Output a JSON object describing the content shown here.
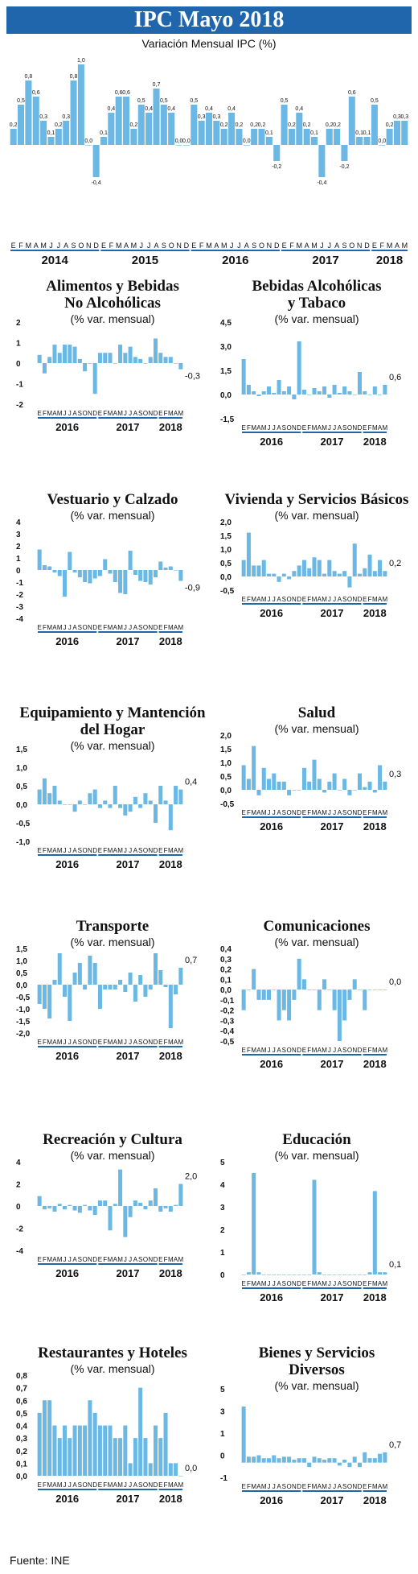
{
  "page": {
    "title": "IPC  Mayo 2018",
    "subtitle": "Variación Mensual IPC (%)",
    "source": "Fuente: INE"
  },
  "chart_data": [
    {
      "id": "main",
      "type": "bar",
      "title": "IPC  Mayo 2018",
      "subtitle": "Variación Mensual IPC (%)",
      "color": "#6bb8e4",
      "show_value_labels": true,
      "ylim": [
        -0.55,
        1.1
      ],
      "month_letters": [
        "E",
        "F",
        "M",
        "A",
        "M",
        "J",
        "J",
        "A",
        "S",
        "O",
        "N",
        "D"
      ],
      "year_labels": [
        "2014",
        "2015",
        "2016",
        "2017",
        "2018"
      ],
      "values": [
        0.2,
        0.5,
        0.8,
        0.6,
        0.3,
        0.1,
        0.2,
        0.3,
        0.8,
        1.0,
        0.0,
        -0.4,
        0.1,
        0.4,
        0.6,
        0.6,
        0.2,
        0.5,
        0.4,
        0.7,
        0.5,
        0.4,
        0.0,
        0.0,
        0.5,
        0.3,
        0.4,
        0.3,
        0.2,
        0.4,
        0.2,
        0.0,
        0.2,
        0.2,
        0.1,
        -0.2,
        0.5,
        0.2,
        0.4,
        0.2,
        0.1,
        -0.4,
        0.2,
        0.2,
        -0.2,
        0.6,
        0.1,
        0.1,
        0.5,
        0.0,
        0.2,
        0.3,
        0.3
      ]
    },
    {
      "id": "alimentos",
      "type": "bar",
      "title": "Alimentos y Bebidas\nNo  Alcohólicas",
      "subtitle": "(% var. mensual)",
      "color": "#6bb8e4",
      "ylim": [
        -2,
        2
      ],
      "yticks": [
        "2",
        "1",
        "0",
        "-1",
        "-2"
      ],
      "year_labels": [
        "2016",
        "2017",
        "2018"
      ],
      "month_letters": [
        "E",
        "F",
        "M",
        "A",
        "M",
        "J",
        "J",
        "A",
        "S",
        "O",
        "N",
        "D"
      ],
      "annotation": "-0,3",
      "values": [
        0.4,
        -0.5,
        0.3,
        0.9,
        0.5,
        0.9,
        0.9,
        0.8,
        0.2,
        -0.4,
        0.0,
        -1.5,
        0.5,
        0.5,
        0.5,
        0.0,
        0.9,
        0.5,
        0.8,
        0.3,
        0.2,
        0.0,
        0.3,
        1.2,
        0.5,
        0.3,
        0.3,
        0.0,
        -0.3
      ]
    },
    {
      "id": "bebidas",
      "type": "bar",
      "title": "Bebidas Alcohólicas\ny Tabaco",
      "subtitle": "(% var. mensual)",
      "color": "#6bb8e4",
      "ylim": [
        -1.5,
        4.5
      ],
      "yticks": [
        "4,5",
        "3,0",
        "1,5",
        "0,0",
        "-1,5"
      ],
      "year_labels": [
        "2016",
        "2017",
        "2018"
      ],
      "month_letters": [
        "E",
        "F",
        "M",
        "A",
        "M",
        "J",
        "J",
        "A",
        "S",
        "O",
        "N",
        "D"
      ],
      "annotation": "0,6",
      "values": [
        2.2,
        0.6,
        0.2,
        -0.1,
        0.2,
        0.5,
        0.1,
        0.9,
        0.2,
        0.5,
        -0.3,
        3.3,
        0.3,
        0.0,
        0.4,
        0.2,
        0.5,
        -0.2,
        0.6,
        0.1,
        0.5,
        0.2,
        0.0,
        1.4,
        0.2,
        0.0,
        0.5,
        0.0,
        0.6
      ]
    },
    {
      "id": "vestuario",
      "type": "bar",
      "title": "Vestuario y Calzado",
      "subtitle": "(% var. mensual)",
      "color": "#6bb8e4",
      "ylim": [
        -4,
        4
      ],
      "yticks": [
        "4",
        "3",
        "2",
        "1",
        "0",
        "-1",
        "-2",
        "-3",
        "-4"
      ],
      "year_labels": [
        "2016",
        "2017",
        "2018"
      ],
      "month_letters": [
        "E",
        "F",
        "M",
        "A",
        "M",
        "J",
        "J",
        "A",
        "S",
        "O",
        "N",
        "D"
      ],
      "annotation": "-0,9",
      "values": [
        1.7,
        0.4,
        0.3,
        -0.2,
        -0.5,
        -2.2,
        1.5,
        -0.2,
        -0.6,
        -1.0,
        -1.1,
        -0.7,
        -0.5,
        0.9,
        -0.3,
        -1.0,
        -1.9,
        -2.0,
        1.6,
        -0.4,
        -0.9,
        -1.0,
        -1.2,
        -0.6,
        0.7,
        0.2,
        0.3,
        0.0,
        -0.9
      ]
    },
    {
      "id": "vivienda",
      "type": "bar",
      "title": "Vivienda y Servicios Básicos",
      "subtitle": "(% var. mensual)",
      "color": "#6bb8e4",
      "ylim": [
        -0.5,
        2.0
      ],
      "yticks": [
        "2,0",
        "1,5",
        "1,0",
        "0,5",
        "0,0",
        "-0,5"
      ],
      "year_labels": [
        "2016",
        "2017",
        "2018"
      ],
      "month_letters": [
        "E",
        "F",
        "M",
        "A",
        "M",
        "J",
        "J",
        "A",
        "S",
        "O",
        "N",
        "D"
      ],
      "annotation": "0,2",
      "values": [
        0.6,
        1.6,
        0.4,
        0.4,
        0.6,
        0.1,
        0.1,
        -0.2,
        0.1,
        -0.1,
        0.2,
        0.4,
        0.6,
        0.3,
        0.7,
        0.6,
        0.1,
        0.6,
        0.2,
        0.1,
        0.2,
        -0.4,
        1.2,
        0.1,
        0.3,
        0.8,
        0.2,
        0.6,
        0.2
      ]
    },
    {
      "id": "equipamiento",
      "type": "bar",
      "title": "Equipamiento y Mantención\ndel Hogar",
      "subtitle": "(% var. mensual)",
      "color": "#6bb8e4",
      "ylim": [
        -1.0,
        1.5
      ],
      "yticks": [
        "1,5",
        "1,0",
        "0,5",
        "0,0",
        "-0,5",
        "-1,0"
      ],
      "year_labels": [
        "2016",
        "2017",
        "2018"
      ],
      "month_letters": [
        "E",
        "F",
        "M",
        "A",
        "M",
        "J",
        "J",
        "A",
        "S",
        "O",
        "N",
        "D"
      ],
      "annotation": "0,4",
      "values": [
        0.4,
        0.7,
        0.3,
        0.5,
        0.1,
        0.0,
        0.0,
        -0.2,
        0.1,
        0.0,
        0.3,
        0.4,
        -0.1,
        0.1,
        -0.1,
        0.5,
        -0.1,
        -0.3,
        -0.2,
        0.2,
        -0.1,
        0.3,
        0.1,
        -0.5,
        0.5,
        0.1,
        -0.7,
        0.5,
        0.4
      ]
    },
    {
      "id": "salud",
      "type": "bar",
      "title": "Salud",
      "subtitle": "(% var. mensual)",
      "color": "#6bb8e4",
      "ylim": [
        -0.5,
        2.0
      ],
      "yticks": [
        "2,0",
        "1,5",
        "1,0",
        "0,5",
        "0,0",
        "-0,5"
      ],
      "year_labels": [
        "2016",
        "2017",
        "2018"
      ],
      "month_letters": [
        "E",
        "F",
        "M",
        "A",
        "M",
        "J",
        "J",
        "A",
        "S",
        "O",
        "N",
        "D"
      ],
      "annotation": "0,3",
      "values": [
        0.9,
        0.4,
        1.6,
        -0.2,
        0.8,
        0.4,
        0.6,
        0.3,
        0.3,
        -0.2,
        0.0,
        0.0,
        0.8,
        0.3,
        1.1,
        0.4,
        -0.1,
        0.3,
        0.6,
        0.0,
        0.4,
        -0.2,
        0.0,
        0.6,
        0.1,
        0.3,
        -0.1,
        0.9,
        0.3
      ]
    },
    {
      "id": "transporte",
      "type": "bar",
      "title": "Transporte",
      "subtitle": "(% var. mensual)",
      "color": "#6bb8e4",
      "ylim": [
        -2.0,
        1.5
      ],
      "yticks": [
        "1,5",
        "1,0",
        "0,5",
        "0,0",
        "-0,5",
        "-1,0",
        "-1,5",
        "-2,0"
      ],
      "year_labels": [
        "2016",
        "2017",
        "2018"
      ],
      "month_letters": [
        "E",
        "F",
        "M",
        "A",
        "M",
        "J",
        "J",
        "A",
        "S",
        "O",
        "N",
        "D"
      ],
      "annotation": "0,7",
      "values": [
        -0.8,
        -1.0,
        -1.4,
        0.2,
        1.3,
        -0.5,
        -1.5,
        0.5,
        0.9,
        -0.2,
        1.2,
        0.9,
        -1.0,
        -0.2,
        -0.2,
        -0.2,
        0.2,
        -0.3,
        0.5,
        -0.7,
        0.4,
        -0.5,
        -0.2,
        1.3,
        0.6,
        -0.1,
        -1.8,
        -0.4,
        0.7
      ]
    },
    {
      "id": "comunicaciones",
      "type": "bar",
      "title": "Comunicaciones",
      "subtitle": "(% var. mensual)",
      "color": "#6bb8e4",
      "ylim": [
        -0.5,
        0.4
      ],
      "yticks": [
        "0,4",
        "0,3",
        "0,2",
        "0,1",
        "0,0",
        "-0,1",
        "-0,2",
        "-0,3",
        "-0,4",
        "-0,5"
      ],
      "year_labels": [
        "2016",
        "2017",
        "2018"
      ],
      "month_letters": [
        "E",
        "F",
        "M",
        "A",
        "M",
        "J",
        "J",
        "A",
        "S",
        "O",
        "N",
        "D"
      ],
      "annotation": "0,0",
      "values": [
        -0.2,
        0.0,
        0.2,
        -0.1,
        -0.1,
        -0.1,
        0.0,
        -0.3,
        -0.2,
        -0.3,
        -0.1,
        0.3,
        0.1,
        0.0,
        0.0,
        -0.2,
        0.1,
        0.0,
        -0.2,
        -0.5,
        -0.3,
        -0.1,
        0.1,
        0.0,
        -0.2,
        0.0,
        0.0,
        0.0,
        0.0
      ]
    },
    {
      "id": "recreacion",
      "type": "bar",
      "title": "Recreación y Cultura",
      "subtitle": "(% var. mensual)",
      "color": "#6bb8e4",
      "ylim": [
        -4,
        4
      ],
      "yticks": [
        "4",
        "2",
        "0",
        "-2",
        "-4"
      ],
      "year_labels": [
        "2016",
        "2017",
        "2018"
      ],
      "month_letters": [
        "E",
        "F",
        "M",
        "A",
        "M",
        "J",
        "J",
        "A",
        "S",
        "O",
        "N",
        "D"
      ],
      "annotation": "2,0",
      "values": [
        0.9,
        -0.3,
        -0.2,
        -0.5,
        0.2,
        -0.3,
        0.1,
        -0.4,
        -0.6,
        0.1,
        -0.4,
        -0.8,
        0.5,
        0.5,
        -2.2,
        0.2,
        3.3,
        -2.8,
        -1.0,
        0.5,
        0.3,
        -0.3,
        0.5,
        1.6,
        -0.5,
        -0.2,
        -0.5,
        0.1,
        2.0
      ]
    },
    {
      "id": "educacion",
      "type": "bar",
      "title": "Educación",
      "subtitle": "(% var. mensual)",
      "color": "#6bb8e4",
      "ylim": [
        0,
        5
      ],
      "yticks": [
        "5",
        "4",
        "3",
        "2",
        "1",
        "0"
      ],
      "year_labels": [
        "2016",
        "2017",
        "2018"
      ],
      "month_letters": [
        "E",
        "F",
        "M",
        "A",
        "M",
        "J",
        "J",
        "A",
        "S",
        "O",
        "N",
        "D"
      ],
      "annotation": "0,1",
      "values": [
        0.0,
        0.1,
        4.5,
        0.1,
        0.0,
        0.0,
        0.0,
        0.0,
        0.0,
        0.0,
        0.0,
        0.0,
        0.0,
        0.0,
        4.2,
        0.1,
        0.0,
        0.0,
        0.0,
        0.0,
        0.0,
        0.0,
        0.0,
        0.0,
        0.0,
        0.1,
        3.7,
        0.1,
        0.1
      ]
    },
    {
      "id": "restaurantes",
      "type": "bar",
      "title": "Restaurantes y Hoteles",
      "subtitle": "(% var. mensual)",
      "color": "#6bb8e4",
      "ylim": [
        0,
        0.8
      ],
      "yticks": [
        "0,8",
        "0,7",
        "0,6",
        "0,5",
        "0,4",
        "0,3",
        "0,2",
        "0,1",
        "0,0"
      ],
      "year_labels": [
        "2016",
        "2017",
        "2018"
      ],
      "month_letters": [
        "E",
        "F",
        "M",
        "A",
        "M",
        "J",
        "J",
        "A",
        "S",
        "O",
        "N",
        "D"
      ],
      "annotation": "0,0",
      "values": [
        0.5,
        0.6,
        0.6,
        0.4,
        0.3,
        0.4,
        0.3,
        0.4,
        0.4,
        0.4,
        0.6,
        0.5,
        0.4,
        0.4,
        0.4,
        0.3,
        0.3,
        0.4,
        0.1,
        0.3,
        0.7,
        0.3,
        0.1,
        0.4,
        0.3,
        0.5,
        0.1,
        0.1,
        0.0
      ]
    },
    {
      "id": "bienes",
      "type": "bar",
      "title": "Bienes y Servicios\nDiversos",
      "subtitle": "(% var. mensual)",
      "color": "#6bb8e4",
      "ylim": [
        -1,
        5
      ],
      "yticks": [
        "5",
        "3",
        "1",
        "0",
        "-1"
      ],
      "year_labels": [
        "2016",
        "2017",
        "2018"
      ],
      "month_letters": [
        "E",
        "F",
        "M",
        "A",
        "M",
        "J",
        "J",
        "A",
        "S",
        "O",
        "N",
        "D"
      ],
      "annotation": "0,7",
      "values": [
        3.8,
        0.4,
        0.4,
        0.5,
        0.3,
        0.3,
        0.5,
        0.3,
        0.4,
        0.4,
        0.2,
        0.3,
        0.3,
        -0.3,
        0.4,
        0.3,
        0.2,
        0.3,
        0.3,
        -0.2,
        0.2,
        -0.3,
        0.4,
        -0.3,
        0.7,
        0.3,
        0.3,
        0.6,
        0.7
      ]
    }
  ]
}
